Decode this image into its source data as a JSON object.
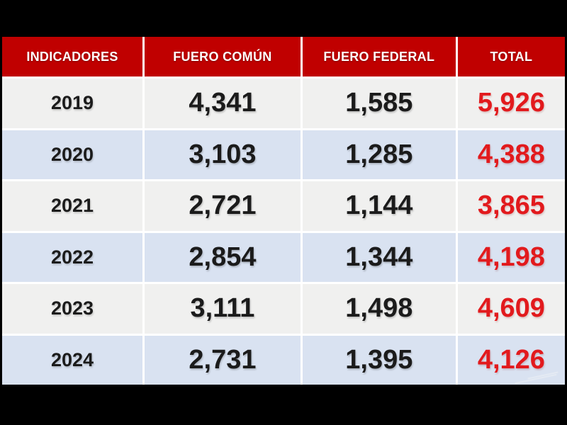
{
  "table": {
    "columns": [
      "INDICADORES",
      "FUERO COMÚN",
      "FUERO FEDERAL",
      "TOTAL"
    ],
    "rows": [
      [
        "2019",
        "4,341",
        "1,585",
        "5,926"
      ],
      [
        "2020",
        "3,103",
        "1,285",
        "4,388"
      ],
      [
        "2021",
        "2,721",
        "1,144",
        "3,865"
      ],
      [
        "2022",
        "2,854",
        "1,344",
        "4,198"
      ],
      [
        "2023",
        "3,111",
        "1,498",
        "4,609"
      ],
      [
        "2024",
        "2,731",
        "1,395",
        "4,126"
      ]
    ]
  },
  "colors": {
    "frame": "#000000",
    "header_bg": "#c00000",
    "header_text": "#ffffff",
    "row_gray": "#f0f0ef",
    "row_blue": "#d9e2f1",
    "body_text": "#1b1b1b",
    "total_text": "#e21a1d",
    "gridline": "#ffffff"
  }
}
